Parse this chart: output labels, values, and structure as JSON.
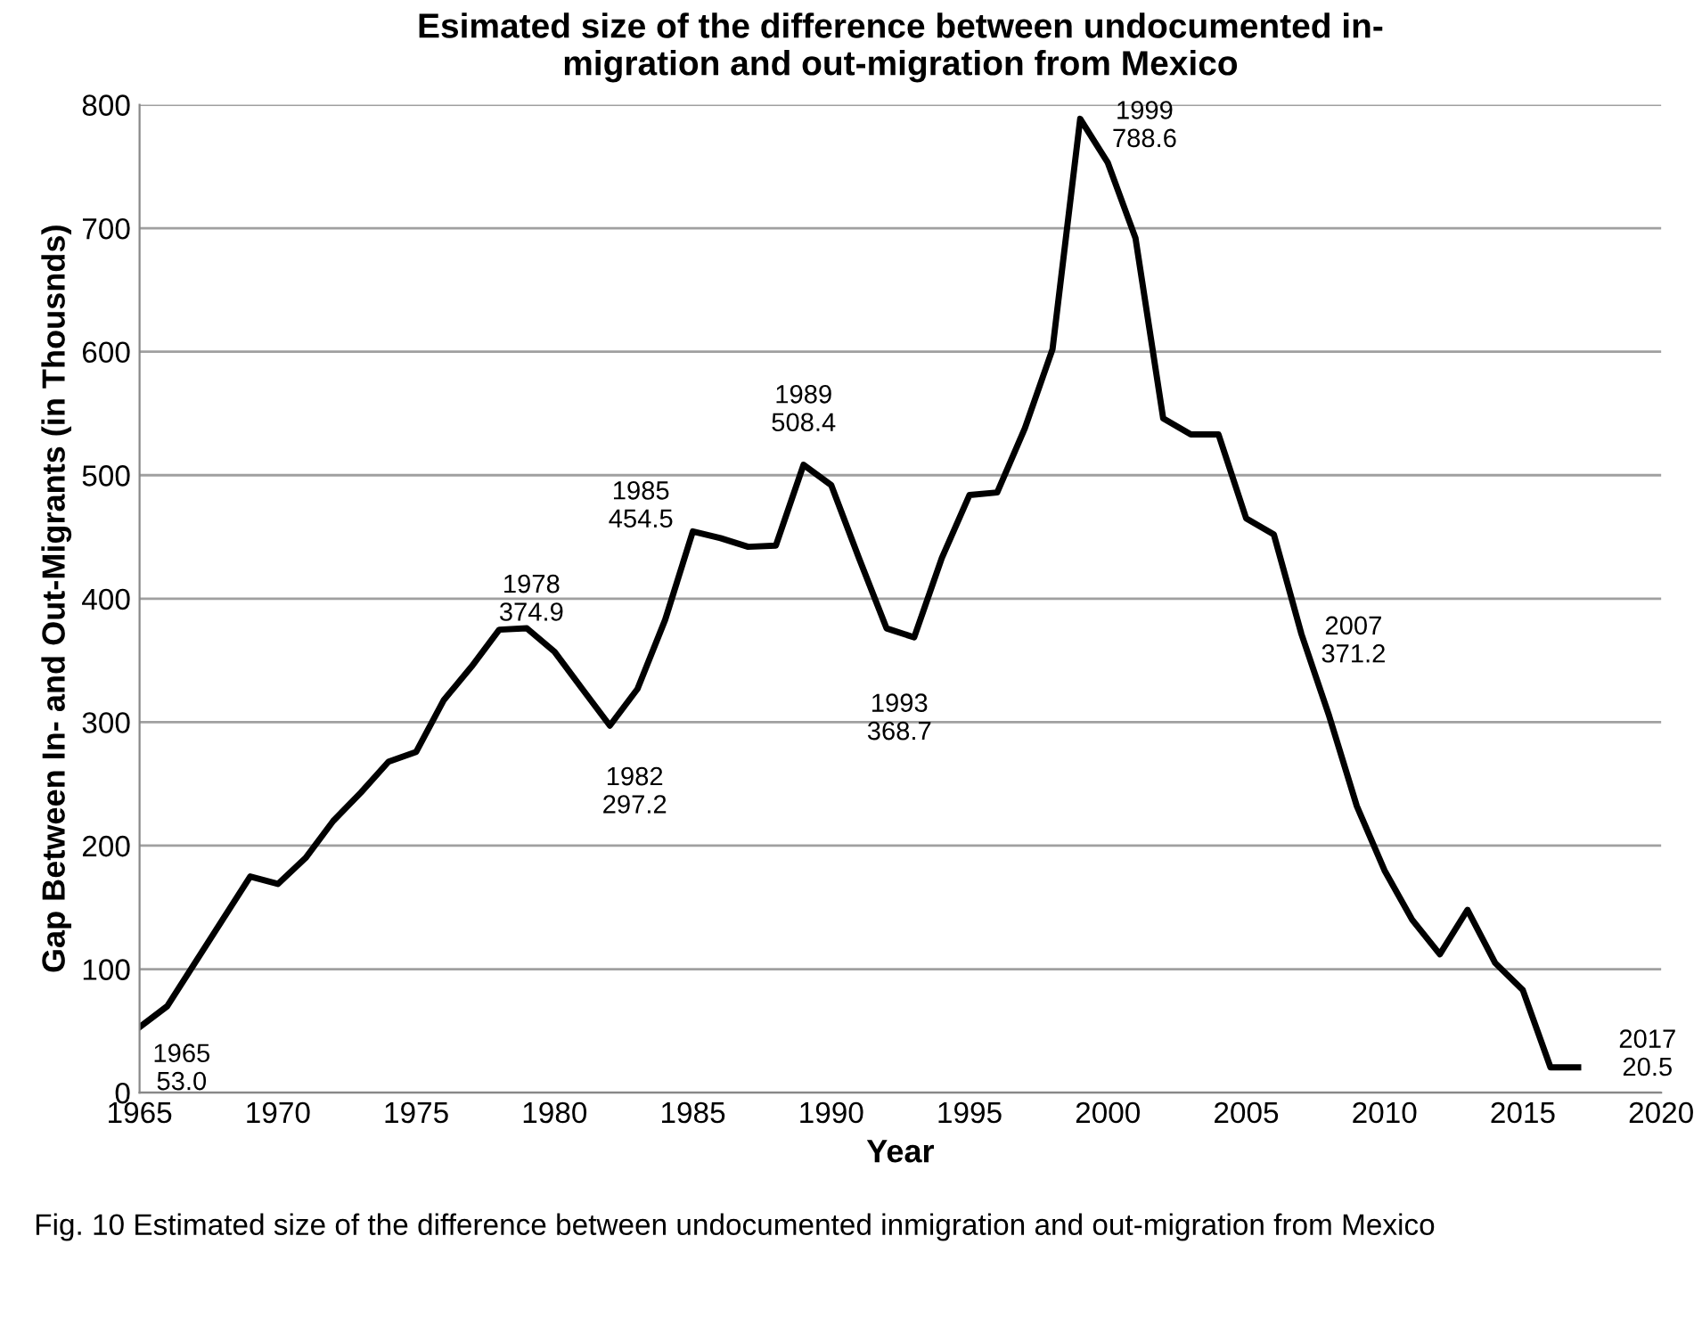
{
  "chart_data": {
    "type": "line",
    "title": "Esimated size of the difference between undocumented in-\nmigration and out-migration from Mexico",
    "xlabel": "Year",
    "ylabel": "Gap Between In- and Out-Migrants (in Thousnds)",
    "x": [
      1965,
      1966,
      1967,
      1968,
      1969,
      1970,
      1971,
      1972,
      1973,
      1974,
      1975,
      1976,
      1977,
      1978,
      1979,
      1980,
      1981,
      1982,
      1983,
      1984,
      1985,
      1986,
      1987,
      1988,
      1989,
      1990,
      1991,
      1992,
      1993,
      1994,
      1995,
      1996,
      1997,
      1998,
      1999,
      2000,
      2001,
      2002,
      2003,
      2004,
      2005,
      2006,
      2007,
      2008,
      2009,
      2010,
      2011,
      2012,
      2013,
      2014,
      2015,
      2016,
      2017
    ],
    "series": [
      {
        "color": "#000000",
        "values": [
          53.0,
          70,
          105,
          140,
          175,
          169,
          190,
          220,
          243,
          268,
          276,
          318,
          345,
          374.9,
          376,
          357,
          327,
          297.2,
          327,
          383,
          454.5,
          449,
          442,
          443,
          508.4,
          492,
          433,
          376,
          368.7,
          433,
          484,
          486,
          538,
          602,
          788.6,
          753,
          692,
          546,
          533,
          533,
          465,
          452,
          371.2,
          305,
          232,
          180,
          140,
          112,
          148,
          105,
          83,
          20.5,
          20.5
        ]
      }
    ],
    "xlim": [
      1965,
      2020
    ],
    "xticks": [
      1965,
      1970,
      1975,
      1980,
      1985,
      1990,
      1995,
      2000,
      2005,
      2010,
      2015,
      2020
    ],
    "ylim": [
      0,
      800
    ],
    "yticks": [
      0,
      100,
      200,
      300,
      400,
      500,
      600,
      700,
      800
    ],
    "grid": "y",
    "marker": "none",
    "line_style": "solid",
    "annotations": [
      {
        "text": "1965\n53.0",
        "x": 1965,
        "y": 53.0
      },
      {
        "text": "1978\n374.9",
        "x": 1978,
        "y": 374.9
      },
      {
        "text": "1982\n297.2",
        "x": 1982,
        "y": 297.2
      },
      {
        "text": "1985\n454.5",
        "x": 1985,
        "y": 454.5
      },
      {
        "text": "1989\n508.4",
        "x": 1989,
        "y": 508.4
      },
      {
        "text": "1993\n368.7",
        "x": 1993,
        "y": 368.7
      },
      {
        "text": "1999\n788.6",
        "x": 1999,
        "y": 788.6
      },
      {
        "text": "2007\n371.2",
        "x": 2007,
        "y": 371.2
      },
      {
        "text": "2017\n20.5",
        "x": 2017,
        "y": 20.5
      },
      "Fig. 10 Estimated size of the difference between undocumented inmigration and out-migration from Mexico"
    ]
  }
}
